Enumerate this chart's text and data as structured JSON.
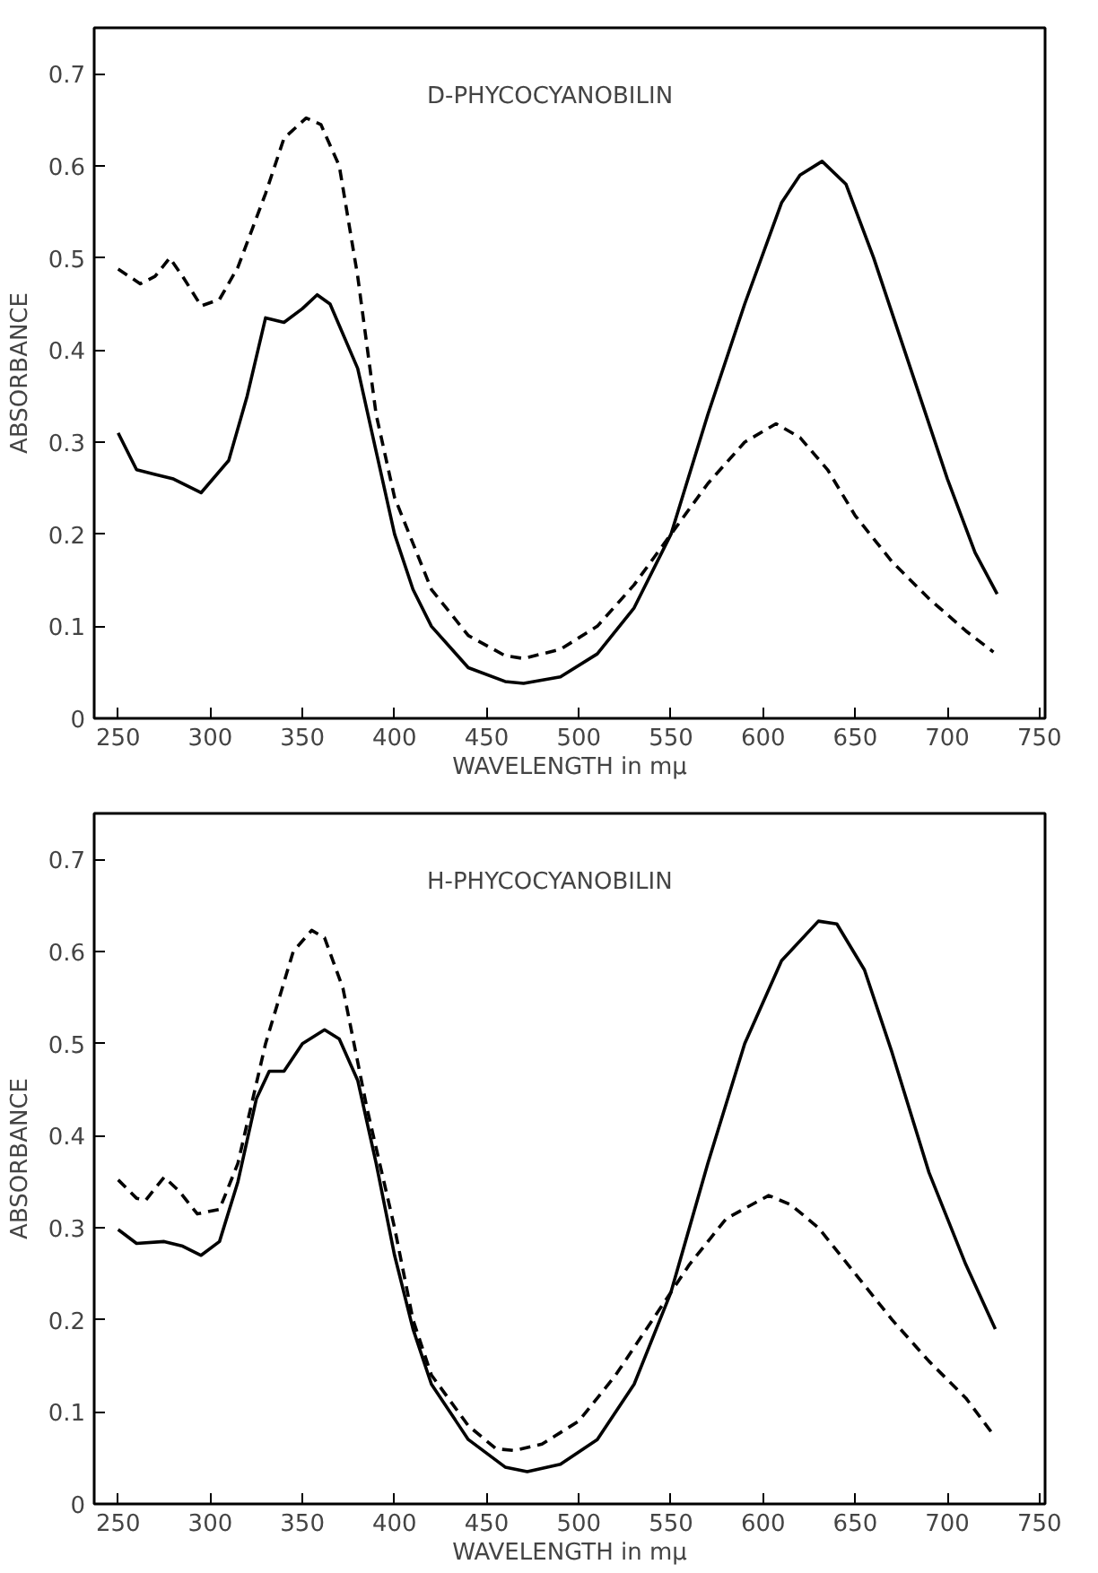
{
  "chart_data": [
    {
      "type": "line",
      "title": "D-PHYCOCYANOBILIN",
      "xlabel": "WAVELENGTH in mμ",
      "ylabel": "ABSORBANCE",
      "xlim": [
        237,
        753
      ],
      "ylim": [
        0,
        0.75
      ],
      "xticks": [
        250,
        300,
        350,
        400,
        450,
        500,
        550,
        600,
        650,
        700,
        750
      ],
      "yticks": [
        0,
        0.1,
        0.2,
        0.3,
        0.4,
        0.5,
        0.6,
        0.7
      ],
      "grid": false,
      "series": [
        {
          "color": "#000000",
          "line_style": "solid",
          "x": [
            250,
            260,
            270,
            280,
            295,
            310,
            320,
            330,
            340,
            350,
            358,
            365,
            380,
            390,
            400,
            410,
            420,
            440,
            460,
            470,
            490,
            510,
            530,
            550,
            570,
            590,
            610,
            620,
            632,
            645,
            660,
            680,
            700,
            715,
            727
          ],
          "values": [
            0.31,
            0.27,
            0.265,
            0.26,
            0.245,
            0.28,
            0.35,
            0.435,
            0.43,
            0.445,
            0.46,
            0.45,
            0.38,
            0.29,
            0.2,
            0.14,
            0.1,
            0.055,
            0.04,
            0.038,
            0.045,
            0.07,
            0.12,
            0.2,
            0.33,
            0.45,
            0.56,
            0.59,
            0.605,
            0.58,
            0.5,
            0.38,
            0.26,
            0.18,
            0.135
          ]
        },
        {
          "color": "#000000",
          "line_style": "dashed",
          "x": [
            250,
            262,
            270,
            278,
            285,
            295,
            305,
            315,
            330,
            340,
            352,
            360,
            370,
            380,
            390,
            400,
            420,
            440,
            460,
            470,
            490,
            510,
            530,
            550,
            570,
            590,
            607,
            620,
            635,
            650,
            670,
            690,
            710,
            725
          ],
          "values": [
            0.488,
            0.472,
            0.48,
            0.5,
            0.48,
            0.448,
            0.455,
            0.49,
            0.57,
            0.63,
            0.652,
            0.645,
            0.6,
            0.48,
            0.33,
            0.24,
            0.14,
            0.09,
            0.068,
            0.065,
            0.075,
            0.1,
            0.145,
            0.2,
            0.255,
            0.3,
            0.32,
            0.305,
            0.27,
            0.22,
            0.17,
            0.13,
            0.095,
            0.072
          ]
        }
      ]
    },
    {
      "type": "line",
      "title": "H-PHYCOCYANOBILIN",
      "xlabel": "WAVELENGTH in mμ",
      "ylabel": "ABSORBANCE",
      "xlim": [
        237,
        753
      ],
      "ylim": [
        0,
        0.75
      ],
      "xticks": [
        250,
        300,
        350,
        400,
        450,
        500,
        550,
        600,
        650,
        700,
        750
      ],
      "yticks": [
        0,
        0.1,
        0.2,
        0.3,
        0.4,
        0.5,
        0.6,
        0.7
      ],
      "grid": false,
      "series": [
        {
          "color": "#000000",
          "line_style": "solid",
          "x": [
            250,
            260,
            275,
            285,
            295,
            305,
            315,
            325,
            332,
            340,
            350,
            362,
            370,
            380,
            390,
            400,
            410,
            420,
            440,
            460,
            472,
            490,
            510,
            530,
            550,
            570,
            590,
            610,
            630,
            640,
            655,
            670,
            690,
            710,
            726
          ],
          "values": [
            0.298,
            0.283,
            0.285,
            0.28,
            0.27,
            0.285,
            0.35,
            0.44,
            0.47,
            0.47,
            0.5,
            0.515,
            0.505,
            0.46,
            0.37,
            0.27,
            0.19,
            0.13,
            0.07,
            0.04,
            0.035,
            0.043,
            0.07,
            0.13,
            0.23,
            0.37,
            0.5,
            0.59,
            0.633,
            0.63,
            0.58,
            0.49,
            0.36,
            0.26,
            0.19
          ]
        },
        {
          "color": "#000000",
          "line_style": "dashed",
          "x": [
            250,
            260,
            265,
            275,
            283,
            293,
            305,
            315,
            330,
            345,
            355,
            362,
            372,
            385,
            400,
            410,
            420,
            440,
            455,
            465,
            480,
            500,
            520,
            540,
            560,
            580,
            603,
            615,
            630,
            650,
            670,
            690,
            710,
            725
          ],
          "values": [
            0.352,
            0.332,
            0.33,
            0.355,
            0.34,
            0.315,
            0.32,
            0.37,
            0.5,
            0.6,
            0.623,
            0.615,
            0.56,
            0.43,
            0.3,
            0.2,
            0.14,
            0.085,
            0.06,
            0.058,
            0.065,
            0.09,
            0.14,
            0.2,
            0.26,
            0.31,
            0.335,
            0.325,
            0.3,
            0.25,
            0.2,
            0.155,
            0.115,
            0.075
          ]
        }
      ]
    }
  ]
}
